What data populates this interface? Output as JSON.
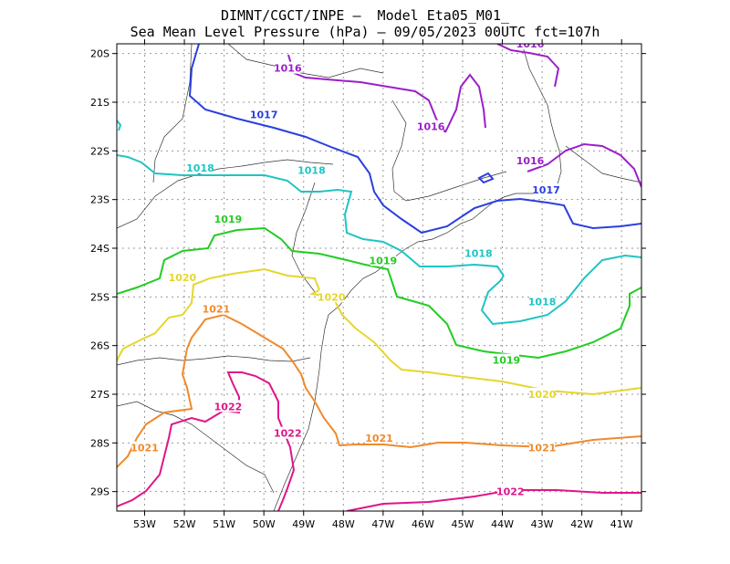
{
  "title": {
    "line1": "DIMNT/CGCT/INPE –  Model Eta05_M01_",
    "line2": "Sea Mean Level Pressure (hPa) – 09/05/2023 00UTC fct=107h"
  },
  "axes": {
    "lat_labels": [
      "20S",
      "21S",
      "22S",
      "23S",
      "24S",
      "25S",
      "26S",
      "27S",
      "28S",
      "29S"
    ],
    "lon_labels": [
      "53W",
      "52W",
      "51W",
      "50W",
      "49W",
      "48W",
      "47W",
      "46W",
      "45W",
      "44W",
      "43W",
      "42W",
      "41W"
    ],
    "lon_range": [
      -53.7,
      -40.5
    ],
    "lat_range": [
      -29.4,
      -19.8
    ],
    "grid": true
  },
  "contours": [
    {
      "level": "1016",
      "color": "#9b1fc9"
    },
    {
      "level": "1017",
      "color": "#2a3fe0"
    },
    {
      "level": "1018",
      "color": "#1fc4c4"
    },
    {
      "level": "1019",
      "color": "#22cc22"
    },
    {
      "level": "1020",
      "color": "#e6d62e"
    },
    {
      "level": "1021",
      "color": "#f08a2c"
    },
    {
      "level": "1022",
      "color": "#e0158b"
    }
  ],
  "contour_labels": [
    {
      "text": "1016",
      "lon": -49.4,
      "lat": -20.3,
      "color": "#9b1fc9"
    },
    {
      "text": "1016",
      "lon": -45.8,
      "lat": -21.5,
      "color": "#9b1fc9"
    },
    {
      "text": "1016",
      "lon": -43.3,
      "lat": -19.8,
      "color": "#9b1fc9"
    },
    {
      "text": "1016",
      "lon": -43.3,
      "lat": -22.2,
      "color": "#9b1fc9"
    },
    {
      "text": "1017",
      "lon": -50.0,
      "lat": -21.25,
      "color": "#2a3fe0"
    },
    {
      "text": "1017",
      "lon": -42.9,
      "lat": -22.8,
      "color": "#2a3fe0"
    },
    {
      "text": "1018",
      "lon": -51.6,
      "lat": -22.35,
      "color": "#1fc4c4"
    },
    {
      "text": "1018",
      "lon": -48.8,
      "lat": -22.4,
      "color": "#1fc4c4"
    },
    {
      "text": "1018",
      "lon": -44.6,
      "lat": -24.1,
      "color": "#1fc4c4"
    },
    {
      "text": "1018",
      "lon": -43.0,
      "lat": -25.1,
      "color": "#1fc4c4"
    },
    {
      "text": "1019",
      "lon": -50.9,
      "lat": -23.4,
      "color": "#22cc22"
    },
    {
      "text": "1019",
      "lon": -47.0,
      "lat": -24.25,
      "color": "#22cc22"
    },
    {
      "text": "1019",
      "lon": -43.9,
      "lat": -26.3,
      "color": "#22cc22"
    },
    {
      "text": "1020",
      "lon": -52.05,
      "lat": -24.6,
      "color": "#e6d62e"
    },
    {
      "text": "1020",
      "lon": -48.3,
      "lat": -25.0,
      "color": "#e6d62e"
    },
    {
      "text": "1020",
      "lon": -43.0,
      "lat": -27.0,
      "color": "#e6d62e"
    },
    {
      "text": "1021",
      "lon": -51.2,
      "lat": -25.25,
      "color": "#f08a2c"
    },
    {
      "text": "1021",
      "lon": -47.1,
      "lat": -27.9,
      "color": "#f08a2c"
    },
    {
      "text": "1021",
      "lon": -53.0,
      "lat": -28.1,
      "color": "#f08a2c"
    },
    {
      "text": "1021",
      "lon": -43.0,
      "lat": -28.1,
      "color": "#f08a2c"
    },
    {
      "text": "1022",
      "lon": -50.9,
      "lat": -27.25,
      "color": "#e0158b"
    },
    {
      "text": "1022",
      "lon": -49.4,
      "lat": -27.8,
      "color": "#e0158b"
    },
    {
      "text": "1022",
      "lon": -43.8,
      "lat": -29.0,
      "color": "#e0158b"
    }
  ]
}
